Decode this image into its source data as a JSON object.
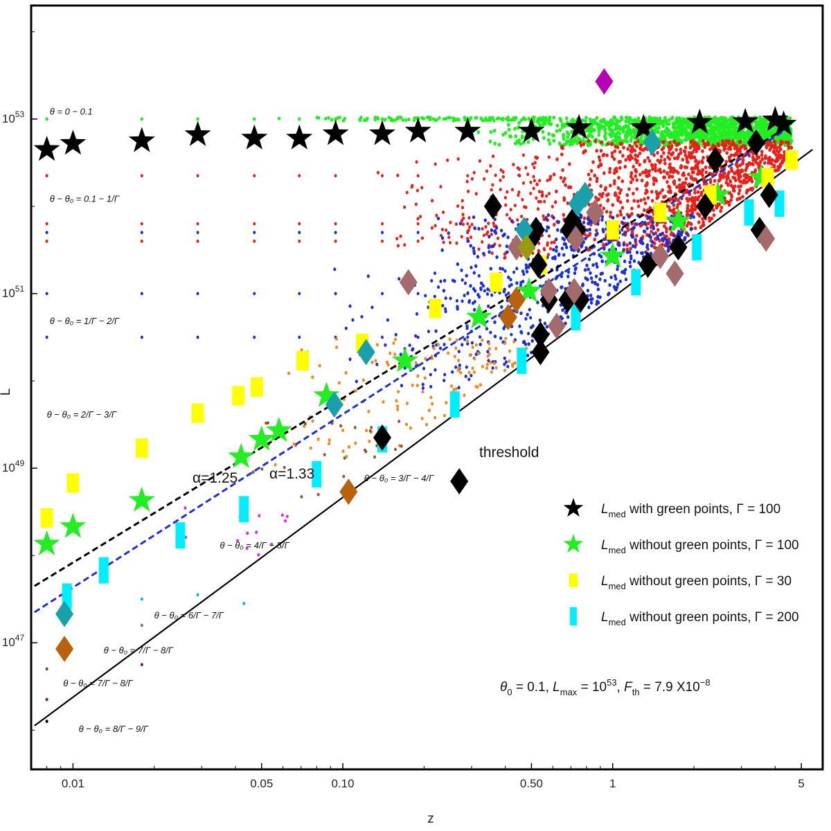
{
  "chart_data": {
    "type": "scatter",
    "xlabel": "z",
    "ylabel": "L",
    "xscale": "log",
    "yscale": "log",
    "xlim": [
      0.007,
      6.0
    ],
    "ylim_log10": [
      45.55,
      54.3
    ],
    "x_ticks": [
      {
        "value": 0.01,
        "label": "0.01"
      },
      {
        "value": 0.05,
        "label": "0.05"
      },
      {
        "value": 0.1,
        "label": "0.10"
      },
      {
        "value": 0.5,
        "label": "0.50"
      },
      {
        "value": 1,
        "label": "1"
      },
      {
        "value": 5,
        "label": "5"
      }
    ],
    "y_ticks": [
      {
        "log10": 47,
        "base": "10",
        "exp": "47"
      },
      {
        "log10": 49,
        "base": "10",
        "exp": "49"
      },
      {
        "log10": 51,
        "base": "10",
        "exp": "51"
      },
      {
        "log10": 53,
        "base": "10",
        "exp": "53"
      }
    ],
    "grid": false,
    "legend_position": "lower-right",
    "legend": [
      {
        "marker": "star",
        "color": "#000000",
        "prefix": "L",
        "sub": "med",
        "text": " with green points, Γ = 100"
      },
      {
        "marker": "star",
        "color": "#22ee22",
        "prefix": "L",
        "sub": "med",
        "text": " without green points, Γ = 100"
      },
      {
        "marker": "rect",
        "color": "#ffff00",
        "prefix": "L",
        "sub": "med",
        "text": " without green points, Γ = 30"
      },
      {
        "marker": "rectTall",
        "color": "#00eeff",
        "prefix": "L",
        "sub": "med",
        "text": " without green points, Γ = 200"
      }
    ],
    "params_annotation": {
      "theta": "θ",
      "sub0": "0",
      "a": " = 0.1, ",
      "L": "L",
      "submax": "max",
      "b": " = 10",
      "sup53": "53",
      "c": ", ",
      "F": "F",
      "subth": "th",
      "d": " = 7.9 X10",
      "supneg8": "−8"
    },
    "lines": [
      {
        "name": "α=1.25",
        "label": "α=1.25",
        "color": "#000000",
        "dash": true,
        "points": [
          [
            0.0072,
            47.65
          ],
          [
            4.4,
            52.9
          ]
        ]
      },
      {
        "name": "α=1.33",
        "label": "α=1.33",
        "color": "#1a2fd6",
        "dash": true,
        "points": [
          [
            0.0072,
            47.35
          ],
          [
            4.4,
            52.88
          ]
        ]
      },
      {
        "name": "threshold",
        "label": "threshold",
        "color": "#000000",
        "dash": false,
        "points": [
          [
            0.0072,
            46.05
          ],
          [
            5.5,
            52.65
          ]
        ]
      }
    ],
    "theta_labels": [
      {
        "text": "θ = 0 − 0.1",
        "z": 0.0082,
        "log10": 53.05
      },
      {
        "text": "θ − θ₀ = 0.1 − 1/Γ",
        "z": 0.0082,
        "log10": 52.05
      },
      {
        "text": "θ − θ₀ = 1/Γ − 2/Γ",
        "z": 0.0082,
        "log10": 50.65
      },
      {
        "text": "θ − θ₀ = 2/Γ − 3/Γ",
        "z": 0.008,
        "log10": 49.58
      },
      {
        "text": "θ − θ₀ = 3/Γ − 4/Γ",
        "z": 0.12,
        "log10": 48.85
      },
      {
        "text": "θ − θ₀ = 4/Γ − 5/Γ",
        "z": 0.035,
        "log10": 48.08
      },
      {
        "text": "θ − θ₀ = 6/Γ − 7/Γ",
        "z": 0.02,
        "log10": 47.28
      },
      {
        "text": "θ − θ₀ = 7/Γ − 8/Γ",
        "z": 0.013,
        "log10": 46.88
      },
      {
        "text": "θ − θ₀ = 7/Γ − 8/Γ",
        "z": 0.0092,
        "log10": 46.5
      },
      {
        "text": "θ − θ₀ = 8/Γ − 9/Γ",
        "z": 0.0105,
        "log10": 45.98
      }
    ],
    "series": [
      {
        "name": "L_med with green points, Γ = 100",
        "marker": "star",
        "color": "#000000",
        "points": [
          [
            0.008,
            52.65
          ],
          [
            0.01,
            52.72
          ],
          [
            0.018,
            52.75
          ],
          [
            0.029,
            52.82
          ],
          [
            0.047,
            52.78
          ],
          [
            0.069,
            52.78
          ],
          [
            0.094,
            52.83
          ],
          [
            0.14,
            52.83
          ],
          [
            0.19,
            52.86
          ],
          [
            0.29,
            52.86
          ],
          [
            0.5,
            52.86
          ],
          [
            0.75,
            52.9
          ],
          [
            1.3,
            52.9
          ],
          [
            2.1,
            52.96
          ],
          [
            3.1,
            52.97
          ],
          [
            4.0,
            52.99
          ],
          [
            4.3,
            52.94
          ]
        ]
      },
      {
        "name": "L_med without green points, Γ = 100",
        "marker": "star",
        "color": "#22ee22",
        "points": [
          [
            0.008,
            48.13
          ],
          [
            0.01,
            48.33
          ],
          [
            0.018,
            48.63
          ],
          [
            0.042,
            49.13
          ],
          [
            0.05,
            49.33
          ],
          [
            0.058,
            49.43
          ],
          [
            0.087,
            49.83
          ],
          [
            0.17,
            50.23
          ],
          [
            0.32,
            50.73
          ],
          [
            0.49,
            51.03
          ],
          [
            1.0,
            51.43
          ],
          [
            1.75,
            51.83
          ],
          [
            2.45,
            52.13
          ],
          [
            3.55,
            52.33
          ]
        ]
      },
      {
        "name": "L_med without green points, Γ = 30",
        "marker": "rect",
        "color": "#ffff00",
        "points": [
          [
            0.008,
            48.43
          ],
          [
            0.01,
            48.83
          ],
          [
            0.018,
            49.23
          ],
          [
            0.029,
            49.63
          ],
          [
            0.041,
            49.83
          ],
          [
            0.048,
            49.93
          ],
          [
            0.071,
            50.23
          ],
          [
            0.118,
            50.43
          ],
          [
            0.22,
            50.83
          ],
          [
            0.37,
            51.13
          ],
          [
            0.54,
            51.33
          ],
          [
            1.0,
            51.73
          ],
          [
            1.5,
            51.93
          ],
          [
            2.3,
            52.13
          ],
          [
            3.75,
            52.33
          ],
          [
            4.6,
            52.53
          ]
        ]
      },
      {
        "name": "L_med without green points, Γ = 200",
        "marker": "rectTall",
        "color": "#00eeff",
        "points": [
          [
            0.0095,
            47.53
          ],
          [
            0.013,
            47.83
          ],
          [
            0.025,
            48.23
          ],
          [
            0.043,
            48.53
          ],
          [
            0.08,
            48.93
          ],
          [
            0.14,
            49.33
          ],
          [
            0.26,
            49.73
          ],
          [
            0.46,
            50.23
          ],
          [
            0.73,
            50.73
          ],
          [
            1.22,
            51.13
          ],
          [
            2.05,
            51.53
          ],
          [
            3.2,
            51.93
          ],
          [
            4.15,
            52.03
          ]
        ]
      },
      {
        "name": "diamonds (black)",
        "marker": "diamond",
        "color": "#000000",
        "points": [
          [
            0.14,
            49.35
          ],
          [
            0.27,
            48.85
          ],
          [
            0.36,
            52.0
          ],
          [
            0.5,
            51.63
          ],
          [
            0.52,
            51.73
          ],
          [
            0.53,
            51.33
          ],
          [
            0.54,
            50.53
          ],
          [
            0.54,
            50.33
          ],
          [
            0.58,
            50.93
          ],
          [
            0.68,
            50.93
          ],
          [
            0.69,
            51.73
          ],
          [
            0.71,
            51.83
          ],
          [
            0.74,
            51.73
          ],
          [
            0.76,
            50.93
          ],
          [
            1.35,
            51.33
          ],
          [
            1.75,
            51.53
          ],
          [
            2.2,
            52.0
          ],
          [
            2.4,
            52.53
          ],
          [
            3.4,
            52.73
          ],
          [
            3.8,
            52.13
          ],
          [
            3.5,
            51.73
          ]
        ]
      },
      {
        "name": "diamonds (teal)",
        "marker": "diamond",
        "color": "#1aa0a8",
        "points": [
          [
            0.0093,
            47.33
          ],
          [
            0.093,
            49.73
          ],
          [
            0.122,
            50.33
          ],
          [
            0.47,
            51.73
          ],
          [
            0.74,
            52.03
          ],
          [
            0.79,
            52.13
          ],
          [
            1.4,
            52.73
          ]
        ]
      },
      {
        "name": "diamonds (rosy brown)",
        "marker": "diamond",
        "color": "#a36b6b",
        "points": [
          [
            0.175,
            51.13
          ],
          [
            0.44,
            51.53
          ],
          [
            0.58,
            51.03
          ],
          [
            0.62,
            50.63
          ],
          [
            0.72,
            51.03
          ],
          [
            0.73,
            51.63
          ],
          [
            0.86,
            51.93
          ],
          [
            1.5,
            51.43
          ],
          [
            1.7,
            51.23
          ],
          [
            3.7,
            51.63
          ]
        ]
      },
      {
        "name": "diamonds (brown)",
        "marker": "diamond",
        "color": "#b8620e",
        "points": [
          [
            0.0093,
            46.93
          ],
          [
            0.105,
            48.73
          ],
          [
            0.41,
            50.73
          ],
          [
            0.44,
            50.93
          ]
        ]
      },
      {
        "name": "diamonds (olive)",
        "marker": "diamond",
        "color": "#9a9a10",
        "points": [
          [
            0.48,
            51.53
          ]
        ]
      },
      {
        "name": "diamonds (purple)",
        "marker": "diamond",
        "color": "#b500b5",
        "points": [
          [
            0.93,
            53.43
          ]
        ]
      }
    ]
  }
}
